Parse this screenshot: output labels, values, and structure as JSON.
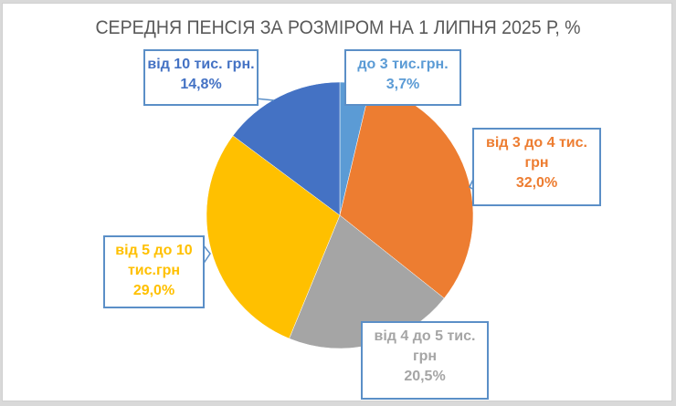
{
  "chart_data": {
    "type": "pie",
    "title": "СЕРЕДНЯ ПЕНСІЯ ЗА РОЗМІРОМ НА 1 ЛИПНЯ 2025 Р, %",
    "categories": [
      "до 3 тис.грн.",
      "від 3 до 4 тис. грн",
      "від 4 до 5 тис. грн",
      "від 5 до 10 тис.грн",
      "від 10 тис. грн."
    ],
    "values": [
      3.7,
      32.0,
      20.5,
      29.0,
      14.8
    ],
    "value_labels": [
      "3,7%",
      "32,0%",
      "20,5%",
      "29,0%",
      "14,8%"
    ],
    "colors": [
      "#5b9bd5",
      "#ed7d31",
      "#a5a5a5",
      "#ffc000",
      "#4472c4"
    ],
    "start_angle": "12 o'clock",
    "direction": "clockwise",
    "legend": "none (data callouts)"
  },
  "labels": {
    "s0": {
      "line1": "до 3 тис.грн.",
      "line2": "3,7%"
    },
    "s1": {
      "line1": "від 3 до 4 тис.",
      "line2": "грн",
      "line3": "32,0%"
    },
    "s2": {
      "line1": "від 4 до 5 тис.",
      "line2": "грн",
      "line3": "20,5%"
    },
    "s3": {
      "line1": "від 5 до 10",
      "line2": "тис.грн",
      "line3": "29,0%"
    },
    "s4": {
      "line1": "від 10 тис. грн.",
      "line2": "14,8%"
    }
  }
}
